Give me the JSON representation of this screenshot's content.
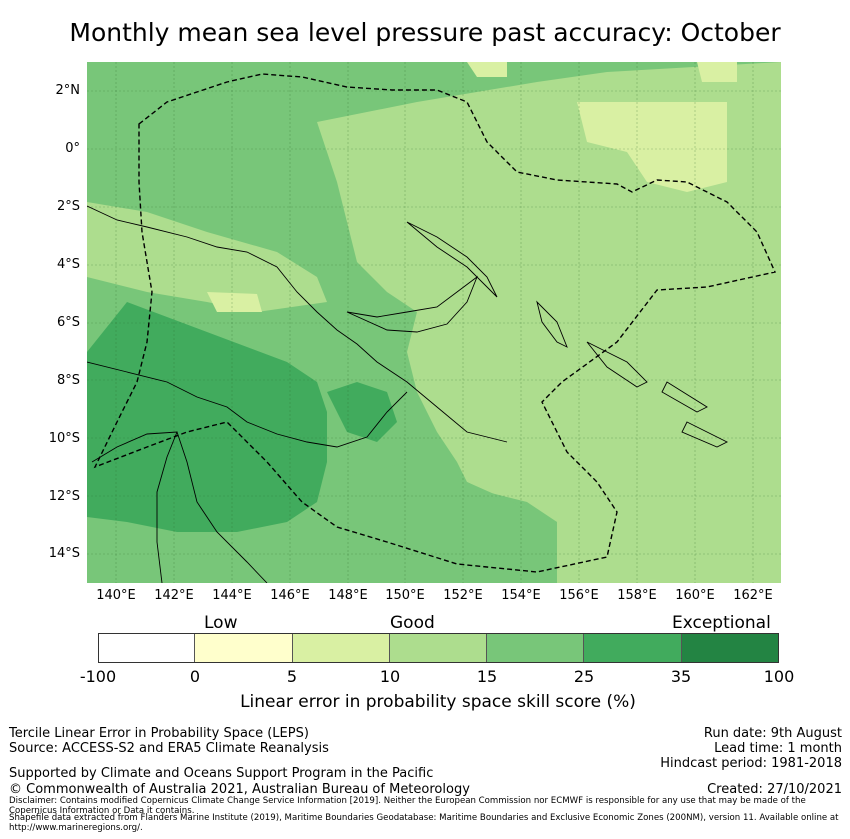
{
  "title": "Monthly mean sea level pressure past accuracy: October",
  "map": {
    "lat_labels": [
      "2°N",
      "0°",
      "2°S",
      "4°S",
      "6°S",
      "8°S",
      "10°S",
      "12°S",
      "14°S"
    ],
    "lon_labels": [
      "140°E",
      "142°E",
      "144°E",
      "146°E",
      "148°E",
      "150°E",
      "152°E",
      "154°E",
      "156°E",
      "158°E",
      "160°E",
      "162°E"
    ],
    "lat_range": [
      -15,
      3
    ],
    "lon_range": [
      139,
      163
    ],
    "boundary_style": "dashed black line (Maritime boundary / EEZ of Papua New Guinea)"
  },
  "colorbar": {
    "categories": [
      "Low",
      "Good",
      "Exceptional"
    ],
    "ticks": [
      "-100",
      "0",
      "5",
      "10",
      "15",
      "25",
      "35",
      "100"
    ],
    "bins": [
      {
        "from": -100,
        "to": 0,
        "color": "#ffffff"
      },
      {
        "from": 0,
        "to": 5,
        "color": "#ffffcc"
      },
      {
        "from": 5,
        "to": 10,
        "color": "#d9f0a3"
      },
      {
        "from": 10,
        "to": 15,
        "color": "#addd8e"
      },
      {
        "from": 15,
        "to": 25,
        "color": "#78c679"
      },
      {
        "from": 25,
        "to": 35,
        "color": "#41ab5d"
      },
      {
        "from": 35,
        "to": 100,
        "color": "#238443"
      }
    ],
    "label": "Linear error in probability space skill score (%)"
  },
  "footer": {
    "left_line1": "Tercile Linear Error in Probability Space (LEPS)",
    "left_line2": "Source: ACCESS-S2 and ERA5 Climate Reanalysis",
    "left_line3": "Supported by Climate and Oceans Support Program in the Pacific",
    "left_line4": "© Commonwealth of Australia 2021, Australian Bureau of Meteorology",
    "right_line1": "Run date: 9th August",
    "right_line2": "Lead time: 1 month",
    "right_line3": "Hindcast period: 1981-2018",
    "right_line4": "Created: 27/10/2021",
    "disclaimer1": "Disclaimer: Contains modified Copernicus Climate Change Service Information [2019]. Neither the European Commission nor ECMWF is responsible for any use that may be made of the Copernicus Information or Data it contains.",
    "disclaimer2": "Shapefile data extracted from Flanders Marine Institute (2019), Maritime Boundaries Geodatabase: Maritime Boundaries and Exclusive Economic Zones (200NM), version 11. Available online at http://www.marineregions.org/."
  }
}
